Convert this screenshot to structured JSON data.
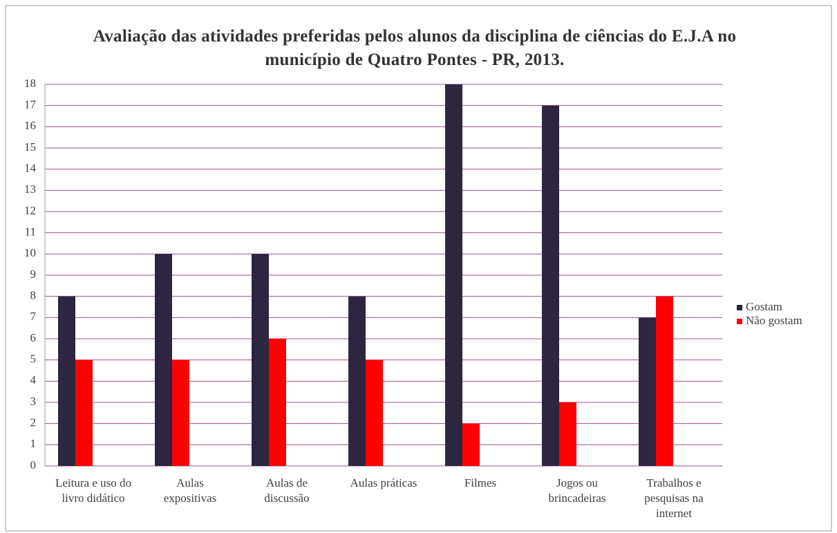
{
  "chart_data": {
    "type": "bar",
    "title": "Avaliação das atividades preferidas pelos alunos da disciplina de ciências do E.J.A no município de Quatro Pontes - PR, 2013.",
    "categories": [
      "Leitura e uso do livro didático",
      "Aulas expositivas",
      "Aulas de discussão",
      "Aulas práticas",
      "Filmes",
      "Jogos ou brincadeiras",
      "Trabalhos e pesquisas na internet"
    ],
    "series": [
      {
        "name": "Gostam",
        "color": "#2e2540",
        "values": [
          8,
          10,
          10,
          8,
          18,
          17,
          7
        ]
      },
      {
        "name": "Não gostam",
        "color": "#ff0000",
        "values": [
          5,
          5,
          6,
          5,
          2,
          3,
          8
        ]
      }
    ],
    "ylim": [
      0,
      18
    ],
    "yticks": [
      0,
      1,
      2,
      3,
      4,
      5,
      6,
      7,
      8,
      9,
      10,
      11,
      12,
      13,
      14,
      15,
      16,
      17,
      18
    ],
    "grid": true,
    "grid_color": "#a0508c",
    "legend": "right"
  }
}
